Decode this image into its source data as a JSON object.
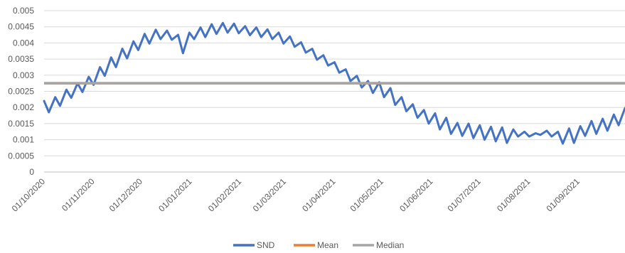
{
  "chart_data": {
    "type": "line",
    "title": "",
    "xlabel": "",
    "ylabel": "",
    "x_range": [
      "2020-10-01",
      "2021-09-30"
    ],
    "ylim": [
      0,
      0.005
    ],
    "y_ticks": [
      "0",
      "0.0005",
      "0.001",
      "0.0015",
      "0.002",
      "0.0025",
      "0.003",
      "0.0035",
      "0.004",
      "0.0045",
      "0.005"
    ],
    "x_ticks": [
      {
        "date": "2020-10-01",
        "label": "01/10/2020"
      },
      {
        "date": "2020-11-01",
        "label": "01/11/2020"
      },
      {
        "date": "2020-12-01",
        "label": "01/12/2020"
      },
      {
        "date": "2021-01-01",
        "label": "01/01/2021"
      },
      {
        "date": "2021-02-01",
        "label": "01/02/2021"
      },
      {
        "date": "2021-03-01",
        "label": "01/03/2021"
      },
      {
        "date": "2021-04-01",
        "label": "01/04/2021"
      },
      {
        "date": "2021-05-01",
        "label": "01/05/2021"
      },
      {
        "date": "2021-06-01",
        "label": "01/06/2021"
      },
      {
        "date": "2021-07-01",
        "label": "01/07/2021"
      },
      {
        "date": "2021-08-01",
        "label": "01/08/2021"
      },
      {
        "date": "2021-09-01",
        "label": "01/09/2021"
      }
    ],
    "grid": true,
    "legend_position": "bottom",
    "series": [
      {
        "name": "SND",
        "color": "#4472C4",
        "x": [
          "2020-10-01",
          "2020-10-04",
          "2020-10-08",
          "2020-10-11",
          "2020-10-15",
          "2020-10-18",
          "2020-10-22",
          "2020-10-25",
          "2020-10-29",
          "2020-11-01",
          "2020-11-05",
          "2020-11-08",
          "2020-11-12",
          "2020-11-15",
          "2020-11-19",
          "2020-11-22",
          "2020-11-26",
          "2020-11-29",
          "2020-12-03",
          "2020-12-06",
          "2020-12-10",
          "2020-12-13",
          "2020-12-17",
          "2020-12-20",
          "2020-12-24",
          "2020-12-27",
          "2020-12-31",
          "2021-01-03",
          "2021-01-07",
          "2021-01-10",
          "2021-01-14",
          "2021-01-17",
          "2021-01-21",
          "2021-01-24",
          "2021-01-28",
          "2021-01-31",
          "2021-02-04",
          "2021-02-07",
          "2021-02-11",
          "2021-02-14",
          "2021-02-18",
          "2021-02-21",
          "2021-02-25",
          "2021-02-28",
          "2021-03-04",
          "2021-03-07",
          "2021-03-11",
          "2021-03-14",
          "2021-03-18",
          "2021-03-21",
          "2021-03-25",
          "2021-03-28",
          "2021-04-01",
          "2021-04-04",
          "2021-04-08",
          "2021-04-11",
          "2021-04-15",
          "2021-04-18",
          "2021-04-22",
          "2021-04-25",
          "2021-04-29",
          "2021-05-02",
          "2021-05-06",
          "2021-05-09",
          "2021-05-13",
          "2021-05-16",
          "2021-05-20",
          "2021-05-23",
          "2021-05-27",
          "2021-05-30",
          "2021-06-03",
          "2021-06-06",
          "2021-06-10",
          "2021-06-13",
          "2021-06-17",
          "2021-06-20",
          "2021-06-24",
          "2021-06-27",
          "2021-07-01",
          "2021-07-04",
          "2021-07-08",
          "2021-07-11",
          "2021-07-15",
          "2021-07-18",
          "2021-07-22",
          "2021-07-25",
          "2021-07-29",
          "2021-08-01",
          "2021-08-05",
          "2021-08-08",
          "2021-08-12",
          "2021-08-15",
          "2021-08-19",
          "2021-08-22",
          "2021-08-26",
          "2021-08-29",
          "2021-09-02",
          "2021-09-05",
          "2021-09-09",
          "2021-09-12",
          "2021-09-16",
          "2021-09-19",
          "2021-09-23",
          "2021-09-26",
          "2021-09-30"
        ],
        "values": [
          0.0022,
          0.00185,
          0.00232,
          0.00205,
          0.00255,
          0.0023,
          0.00275,
          0.00248,
          0.00295,
          0.0027,
          0.00325,
          0.00298,
          0.00355,
          0.00325,
          0.00382,
          0.00352,
          0.00405,
          0.00378,
          0.00428,
          0.00398,
          0.00441,
          0.00412,
          0.00438,
          0.0041,
          0.00425,
          0.00368,
          0.00432,
          0.00412,
          0.00448,
          0.00418,
          0.00458,
          0.00428,
          0.00462,
          0.00432,
          0.0046,
          0.0043,
          0.00452,
          0.00424,
          0.00448,
          0.00418,
          0.00442,
          0.00412,
          0.00432,
          0.00398,
          0.0042,
          0.00388,
          0.00402,
          0.0037,
          0.00382,
          0.00348,
          0.00362,
          0.0033,
          0.0034,
          0.00308,
          0.00318,
          0.00282,
          0.00298,
          0.00262,
          0.00282,
          0.00245,
          0.00278,
          0.00232,
          0.0026,
          0.00208,
          0.00232,
          0.00188,
          0.0021,
          0.00168,
          0.00192,
          0.0015,
          0.00182,
          0.00132,
          0.00168,
          0.00118,
          0.00152,
          0.00112,
          0.0015,
          0.00105,
          0.00145,
          0.001,
          0.0014,
          0.00095,
          0.00138,
          0.0009,
          0.00132,
          0.0011,
          0.00125,
          0.0011,
          0.0012,
          0.00115,
          0.00128,
          0.0011,
          0.00125,
          0.00088,
          0.00135,
          0.0009,
          0.00142,
          0.00112,
          0.00158,
          0.00118,
          0.00165,
          0.00128,
          0.00178,
          0.00145,
          0.00198
        ]
      },
      {
        "name": "Mean",
        "color": "#ED7D31",
        "constant": 0.00275
      },
      {
        "name": "Median",
        "color": "#A5A5A5",
        "constant": 0.00275
      }
    ]
  }
}
